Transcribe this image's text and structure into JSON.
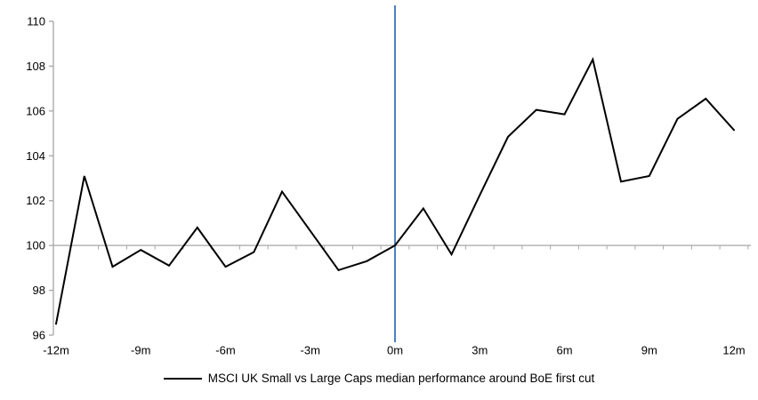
{
  "chart_data": {
    "type": "line",
    "title": "",
    "xlabel": "",
    "ylabel": "",
    "x": [
      -12,
      -11,
      -10,
      -9,
      -8,
      -7,
      -6,
      -5,
      -4,
      -3,
      -2,
      -1,
      0,
      1,
      2,
      3,
      4,
      5,
      6,
      7,
      8,
      9,
      10,
      11,
      12
    ],
    "series": [
      {
        "name": "MSCI UK Small vs Large Caps median performance around BoE first cut",
        "color": "#000000",
        "values": [
          96.5,
          103.1,
          99.05,
          99.8,
          99.1,
          100.8,
          99.05,
          99.7,
          102.4,
          100.65,
          98.9,
          99.3,
          100.0,
          101.65,
          99.6,
          102.25,
          104.85,
          106.05,
          105.85,
          108.3,
          102.85,
          103.1,
          105.65,
          106.55,
          105.15
        ]
      }
    ],
    "ylim": [
      96,
      110
    ],
    "yticks": [
      96,
      98,
      100,
      102,
      104,
      106,
      108,
      110
    ],
    "ytick_labels": [
      "96",
      "98",
      "100",
      "102",
      "104",
      "106",
      "108",
      "110"
    ],
    "xticks_labeled": [
      -12,
      -9,
      -6,
      -3,
      0,
      3,
      6,
      9,
      12
    ],
    "xtick_labels": [
      "-12m",
      "-9m",
      "-6m",
      "-3m",
      "0m",
      "3m",
      "6m",
      "9m",
      "12m"
    ],
    "baseline_value": 100,
    "event_line_x": 0,
    "grid": "off",
    "legend_position": "bottom",
    "colors": {
      "axis": "#A6A6A6",
      "baseline": "#A6A6A6",
      "event_line": "#4F81BD",
      "series": "#000000",
      "tick_label": "#000000"
    }
  },
  "legend": {
    "label": "MSCI UK Small vs Large Caps median performance around BoE first cut"
  }
}
